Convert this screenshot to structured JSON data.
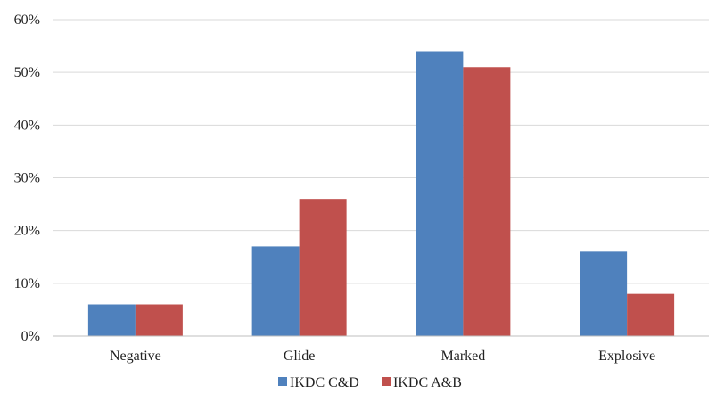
{
  "chart_data": {
    "type": "bar",
    "title": "",
    "xlabel": "",
    "ylabel": "",
    "categories": [
      "Negative",
      "Glide",
      "Marked",
      "Explosive"
    ],
    "series": [
      {
        "name": "IKDC C&D",
        "color": "#4f81bd",
        "values": [
          6,
          17,
          54,
          16
        ]
      },
      {
        "name": "IKDC A&B",
        "color": "#c0504d",
        "values": [
          6,
          26,
          51,
          8
        ]
      }
    ],
    "ylim": [
      0,
      60
    ],
    "yticks": [
      0,
      10,
      20,
      30,
      40,
      50,
      60
    ],
    "ytick_labels": [
      "0%",
      "10%",
      "20%",
      "30%",
      "40%",
      "50%",
      "60%"
    ],
    "grid": true,
    "legend_position": "bottom"
  }
}
